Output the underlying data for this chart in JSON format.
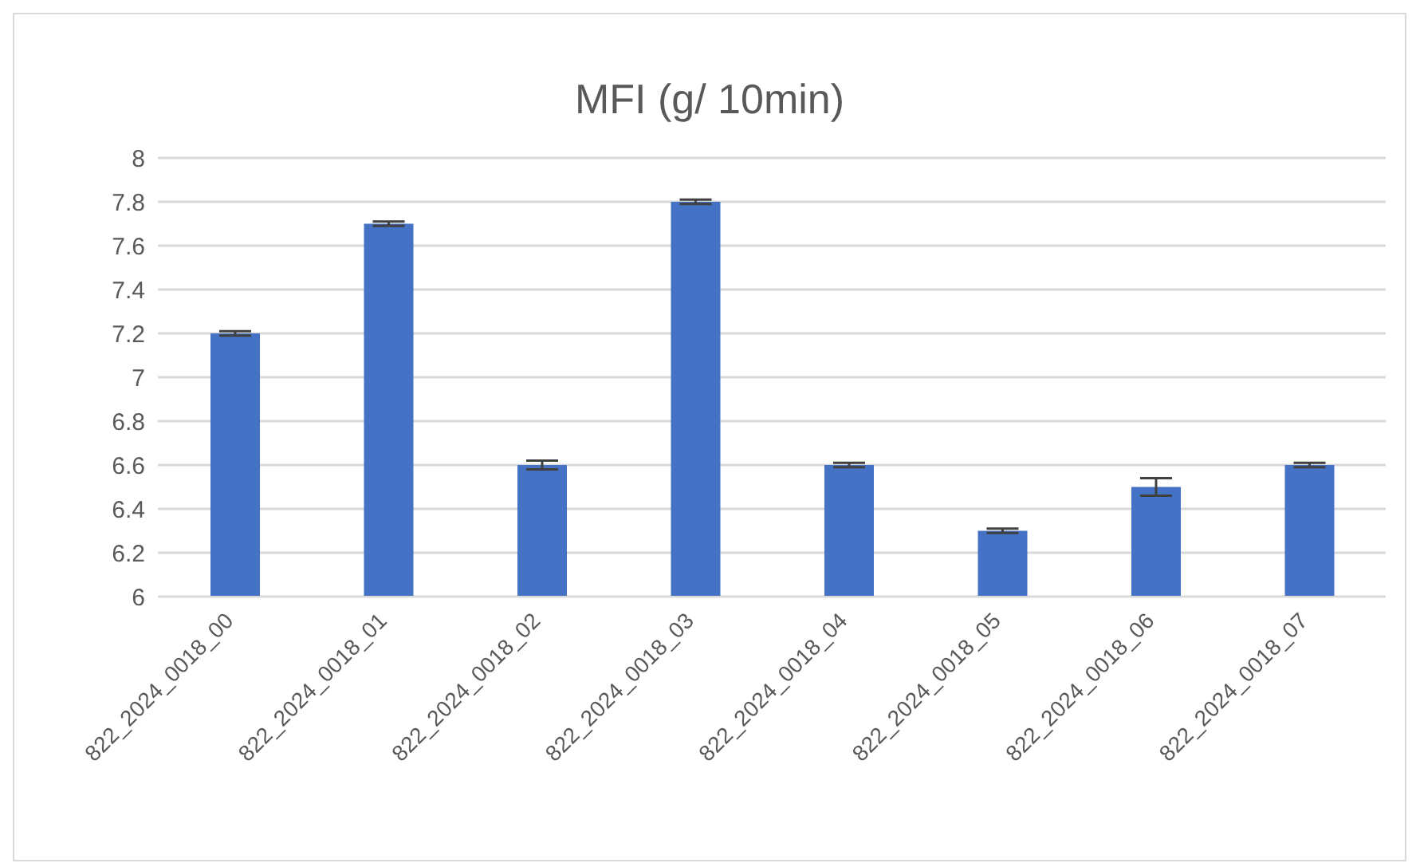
{
  "chart_data": {
    "type": "bar",
    "title": "MFI (g/ 10min)",
    "categories": [
      "822_2024_0018_00",
      "822_2024_0018_01",
      "822_2024_0018_02",
      "822_2024_0018_03",
      "822_2024_0018_04",
      "822_2024_0018_05",
      "822_2024_0018_06",
      "822_2024_0018_07"
    ],
    "series": [
      {
        "color": "#4472c4",
        "values": [
          7.2,
          7.7,
          6.6,
          7.8,
          6.6,
          6.3,
          6.5,
          6.6
        ],
        "errors": [
          0.01,
          0.01,
          0.02,
          0.01,
          0.01,
          0.01,
          0.04,
          0.01
        ]
      }
    ],
    "ylim": [
      6,
      8
    ],
    "yticks": [
      6,
      6.2,
      6.4,
      6.6,
      6.8,
      7,
      7.2,
      7.4,
      7.6,
      7.8,
      8
    ],
    "grid": "y",
    "legend": false
  }
}
